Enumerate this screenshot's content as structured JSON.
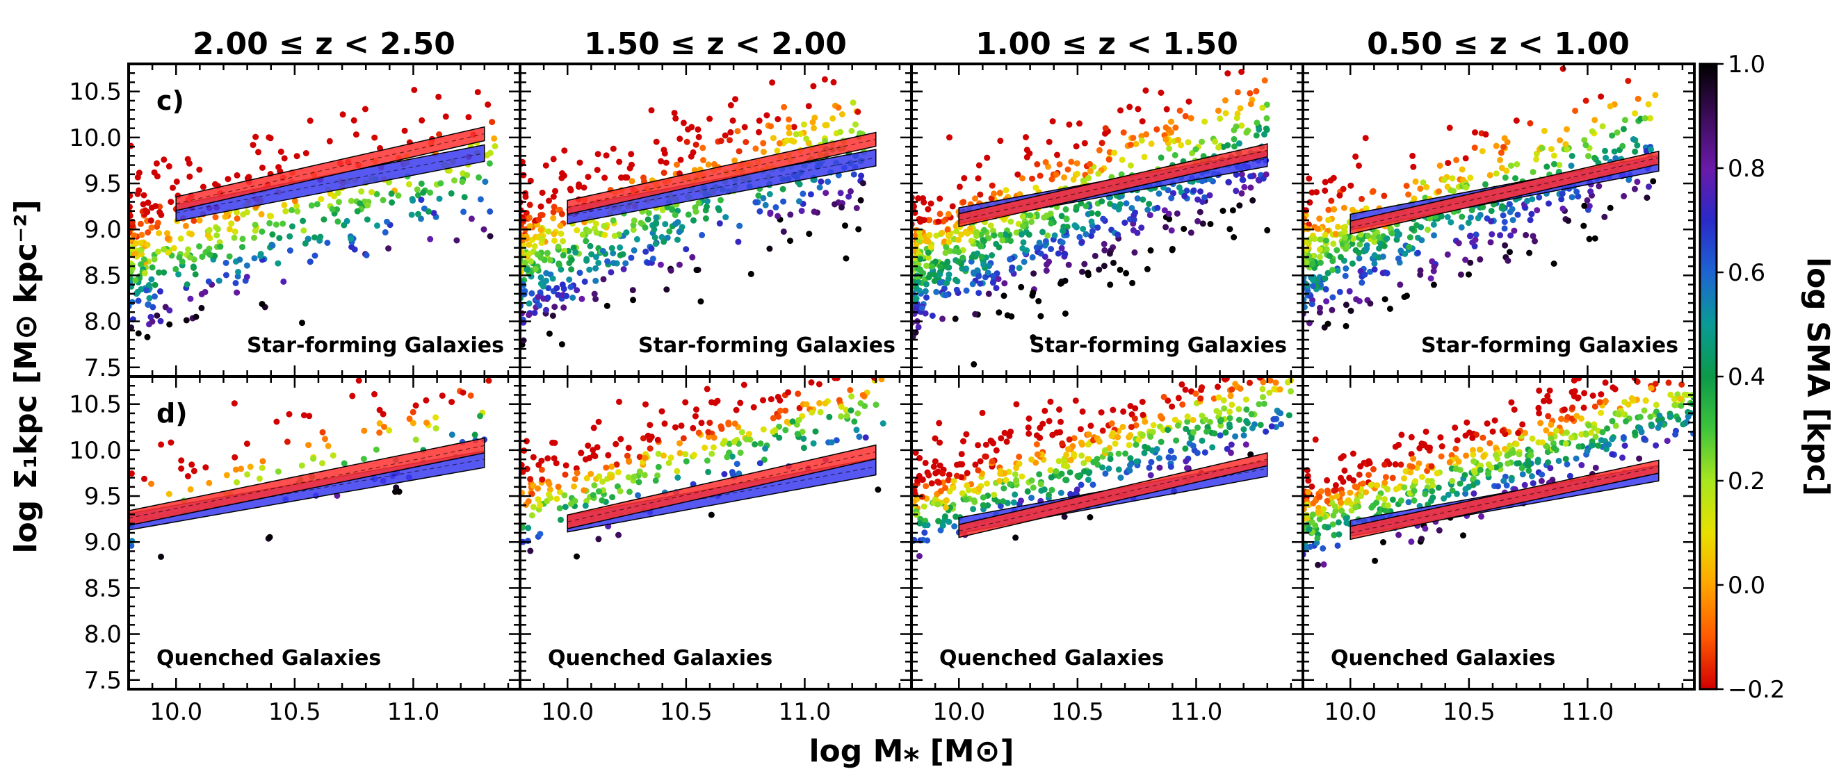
{
  "chart_data": {
    "type": "scatter",
    "xlabel": "log M⁎ [M⊙]",
    "ylabel": "log Σ₁kpc [M⊙ kpc⁻²]",
    "xlim": [
      9.8,
      11.45
    ],
    "ylim": [
      7.4,
      10.8
    ],
    "xticks": [
      10.0,
      10.5,
      11.0
    ],
    "xtick_labels": [
      "10.0",
      "10.5",
      "11.0"
    ],
    "yticks": [
      7.5,
      8.0,
      8.5,
      9.0,
      9.5,
      10.0,
      10.5
    ],
    "ytick_labels": [
      "7.5",
      "8.0",
      "8.5",
      "9.0",
      "9.5",
      "10.0",
      "10.5"
    ],
    "columns": [
      {
        "title": "2.00 ≤ z < 2.50"
      },
      {
        "title": "1.50 ≤ z < 2.00"
      },
      {
        "title": "1.00 ≤ z < 1.50"
      },
      {
        "title": "0.50 ≤ z < 1.00"
      }
    ],
    "rows": [
      {
        "letter": "c)",
        "label": "Star-forming Galaxies"
      },
      {
        "letter": "d)",
        "label": "Quenched Galaxies"
      }
    ],
    "colorbar": {
      "label": "log SMA [kpc]",
      "range": [
        -0.2,
        1.0
      ],
      "ticks": [
        -0.2,
        0.0,
        0.2,
        0.4,
        0.6,
        0.8,
        1.0
      ],
      "tick_labels": [
        "−0.2",
        "0.0",
        "0.2",
        "0.4",
        "0.6",
        "0.8",
        "1.0"
      ],
      "colormap": [
        "#d10000",
        "#ff5a00",
        "#ffa500",
        "#e8e000",
        "#a8e61e",
        "#3ec43c",
        "#0c9a4a",
        "#0a9a96",
        "#1e64d2",
        "#2a2ac8",
        "#6a1aa8",
        "#3c0c5a",
        "#000000"
      ]
    },
    "panels": [
      {
        "row": 0,
        "col": 0,
        "bands": [
          {
            "name": "blue",
            "color": "#3a3af0",
            "x": [
              10.0,
              11.3
            ],
            "center": [
              9.18,
              9.83
            ],
            "width": 0.18
          },
          {
            "name": "red",
            "color": "#ff3030",
            "x": [
              10.0,
              11.3
            ],
            "center": [
              9.28,
              10.04
            ],
            "width": 0.15
          }
        ],
        "points": {
          "n": 460,
          "seed": 11,
          "x_range": [
            9.8,
            11.35
          ],
          "x_bias": 1.6,
          "slope": 0.62,
          "y_at_10": 8.85,
          "scatter": 0.42,
          "sma_offset": 0.15,
          "sma_coef": 0.9
        }
      },
      {
        "row": 0,
        "col": 1,
        "bands": [
          {
            "name": "blue",
            "color": "#3a3af0",
            "x": [
              10.0,
              11.3
            ],
            "center": [
              9.15,
              9.78
            ],
            "width": 0.18
          },
          {
            "name": "red",
            "color": "#ff3030",
            "x": [
              10.0,
              11.3
            ],
            "center": [
              9.24,
              9.98
            ],
            "width": 0.15
          }
        ],
        "points": {
          "n": 640,
          "seed": 23,
          "x_range": [
            9.8,
            11.25
          ],
          "x_bias": 1.5,
          "slope": 0.85,
          "y_at_10": 8.85,
          "scatter": 0.4,
          "sma_offset": 0.22,
          "sma_coef": 0.9
        }
      },
      {
        "row": 0,
        "col": 2,
        "bands": [
          {
            "name": "blue",
            "color": "#3a3af0",
            "x": [
              10.0,
              11.3
            ],
            "center": [
              9.15,
              9.77
            ],
            "width": 0.17
          },
          {
            "name": "red",
            "color": "#ff3030",
            "x": [
              10.0,
              11.3
            ],
            "center": [
              9.1,
              9.86
            ],
            "width": 0.14
          }
        ],
        "points": {
          "n": 820,
          "seed": 37,
          "x_range": [
            9.8,
            11.3
          ],
          "x_bias": 1.45,
          "slope": 0.95,
          "y_at_10": 8.75,
          "scatter": 0.38,
          "sma_offset": 0.3,
          "sma_coef": 0.85
        }
      },
      {
        "row": 0,
        "col": 3,
        "bands": [
          {
            "name": "blue",
            "color": "#3a3af0",
            "x": [
              10.0,
              11.3
            ],
            "center": [
              9.08,
              9.72
            ],
            "width": 0.17
          },
          {
            "name": "red",
            "color": "#ff3030",
            "x": [
              10.0,
              11.3
            ],
            "center": [
              9.02,
              9.78
            ],
            "width": 0.14
          }
        ],
        "points": {
          "n": 600,
          "seed": 53,
          "x_range": [
            9.8,
            11.3
          ],
          "x_bias": 1.5,
          "slope": 0.9,
          "y_at_10": 8.8,
          "scatter": 0.35,
          "sma_offset": 0.33,
          "sma_coef": 0.85
        }
      },
      {
        "row": 1,
        "col": 0,
        "bands": [
          {
            "name": "blue",
            "color": "#3a3af0",
            "x": [
              9.8,
              11.3
            ],
            "center": [
              9.22,
              9.9
            ],
            "width": 0.18
          },
          {
            "name": "red",
            "color": "#ff3030",
            "x": [
              9.8,
              11.3
            ],
            "center": [
              9.26,
              10.05
            ],
            "width": 0.16
          }
        ],
        "points": {
          "n": 110,
          "seed": 71,
          "x_range": [
            9.8,
            11.35
          ],
          "x_bias": 1.0,
          "slope": 0.65,
          "y_at_10": 9.55,
          "scatter": 0.32,
          "sma_offset": 0.05,
          "sma_coef": 1.3
        }
      },
      {
        "row": 1,
        "col": 1,
        "bands": [
          {
            "name": "blue",
            "color": "#3a3af0",
            "x": [
              10.0,
              11.3
            ],
            "center": [
              9.2,
              9.82
            ],
            "width": 0.18
          },
          {
            "name": "red",
            "color": "#ff3030",
            "x": [
              10.0,
              11.3
            ],
            "center": [
              9.22,
              9.98
            ],
            "width": 0.15
          }
        ],
        "points": {
          "n": 320,
          "seed": 89,
          "x_range": [
            9.8,
            11.35
          ],
          "x_bias": 1.1,
          "slope": 0.72,
          "y_at_10": 9.6,
          "scatter": 0.3,
          "sma_offset": 0.05,
          "sma_coef": 1.3
        }
      },
      {
        "row": 1,
        "col": 2,
        "bands": [
          {
            "name": "blue",
            "color": "#3a3af0",
            "x": [
              10.0,
              11.3
            ],
            "center": [
              9.18,
              9.8
            ],
            "width": 0.17
          },
          {
            "name": "red",
            "color": "#ff3030",
            "x": [
              10.0,
              11.3
            ],
            "center": [
              9.12,
              9.9
            ],
            "width": 0.14
          }
        ],
        "points": {
          "n": 520,
          "seed": 97,
          "x_range": [
            9.8,
            11.4
          ],
          "x_bias": 1.15,
          "slope": 0.75,
          "y_at_10": 9.55,
          "scatter": 0.28,
          "sma_offset": 0.1,
          "sma_coef": 1.3
        }
      },
      {
        "row": 1,
        "col": 3,
        "bands": [
          {
            "name": "blue",
            "color": "#3a3af0",
            "x": [
              10.0,
              11.3
            ],
            "center": [
              9.15,
              9.75
            ],
            "width": 0.17
          },
          {
            "name": "red",
            "color": "#ff3030",
            "x": [
              10.0,
              11.3
            ],
            "center": [
              9.1,
              9.82
            ],
            "width": 0.14
          }
        ],
        "points": {
          "n": 620,
          "seed": 131,
          "x_range": [
            9.8,
            11.45
          ],
          "x_bias": 1.2,
          "slope": 0.75,
          "y_at_10": 9.45,
          "scatter": 0.25,
          "sma_offset": 0.12,
          "sma_coef": 1.3
        }
      }
    ]
  }
}
